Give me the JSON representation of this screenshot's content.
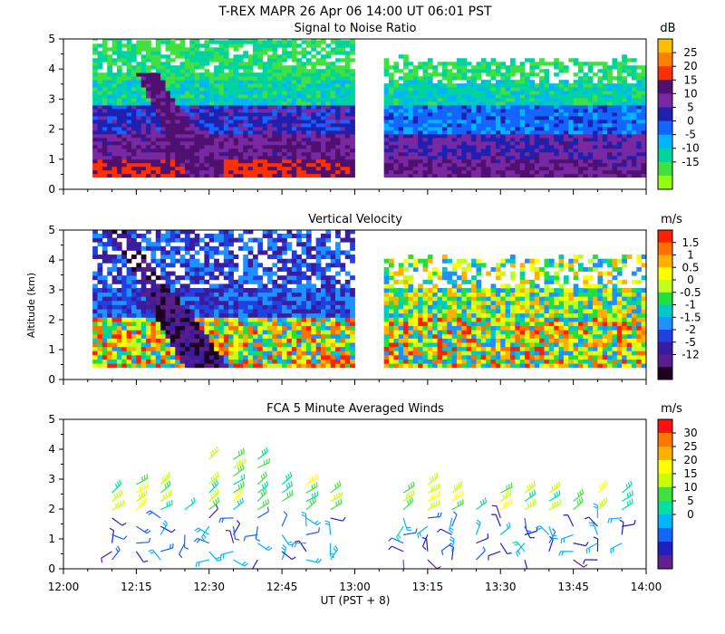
{
  "header": {
    "title": "T-REX  MAPR 26 Apr 06  14:00 UT  06:01  PST"
  },
  "x_axis": {
    "label": "UT  (PST + 8)",
    "ticks": [
      "12:00",
      "12:15",
      "12:30",
      "12:45",
      "13:00",
      "13:15",
      "13:30",
      "13:45",
      "14:00"
    ]
  },
  "chart_data": [
    {
      "type": "heatmap",
      "title": "Signal to Noise Ratio",
      "xlabel": "",
      "ylabel": "",
      "xlim": [
        "12:00",
        "14:00"
      ],
      "ylim": [
        0,
        5
      ],
      "yticks": [
        "0",
        "1",
        "2",
        "3",
        "4",
        "5"
      ],
      "data_gap": [
        "13:00",
        "13:06"
      ],
      "colorbar": {
        "unit": "dB",
        "labels": [
          "25",
          "20",
          "15",
          "10",
          "5",
          "0",
          "-5",
          "-10",
          "-15"
        ],
        "colors": [
          "#ffc000",
          "#ff8000",
          "#ff3000",
          "#501070",
          "#7828a0",
          "#2020b0",
          "#1464ff",
          "#00b4ff",
          "#00d2a0",
          "#40e040",
          "#90ff10"
        ]
      }
    },
    {
      "type": "heatmap",
      "title": "Vertical Velocity",
      "xlabel": "",
      "ylabel": "Altitude (km)",
      "xlim": [
        "12:00",
        "14:00"
      ],
      "ylim": [
        0,
        5
      ],
      "yticks": [
        "0",
        "1",
        "2",
        "3",
        "4",
        "5"
      ],
      "data_gap": [
        "13:00",
        "13:06"
      ],
      "colorbar": {
        "unit": "m/s",
        "labels": [
          "1.5",
          "1",
          "0.5",
          "0",
          "-0.5",
          "-1",
          "-1.5",
          "-2",
          "-5",
          "-12"
        ],
        "colors": [
          "#ff2000",
          "#ff7000",
          "#ffb000",
          "#ffff00",
          "#c0ff20",
          "#20e040",
          "#00c8c8",
          "#1e90ff",
          "#2040e0",
          "#3a1ca0",
          "#5a1e8c",
          "#200020"
        ]
      }
    },
    {
      "type": "scatter",
      "title": "FCA 5 Minute Averaged Winds",
      "xlabel": "",
      "ylabel": "",
      "xlim": [
        "12:00",
        "14:00"
      ],
      "ylim": [
        0,
        5
      ],
      "yticks": [
        "0",
        "1",
        "2",
        "3",
        "4",
        "5"
      ],
      "x": [
        "12:10",
        "12:15",
        "12:20",
        "12:25",
        "12:30",
        "12:35",
        "12:40",
        "12:45",
        "12:50",
        "12:55",
        "13:10",
        "13:15",
        "13:20",
        "13:25",
        "13:30",
        "13:35",
        "13:40",
        "13:45",
        "13:50",
        "13:55"
      ],
      "colorbar": {
        "unit": "m/s",
        "labels": [
          "30",
          "25",
          "20",
          "15",
          "10",
          "5",
          "0"
        ],
        "colors": [
          "#ff1010",
          "#ff7800",
          "#ffb000",
          "#ffff00",
          "#c8ff00",
          "#40e040",
          "#00e0a0",
          "#00b4ff",
          "#1464ff",
          "#2020c0",
          "#602090"
        ]
      }
    }
  ]
}
